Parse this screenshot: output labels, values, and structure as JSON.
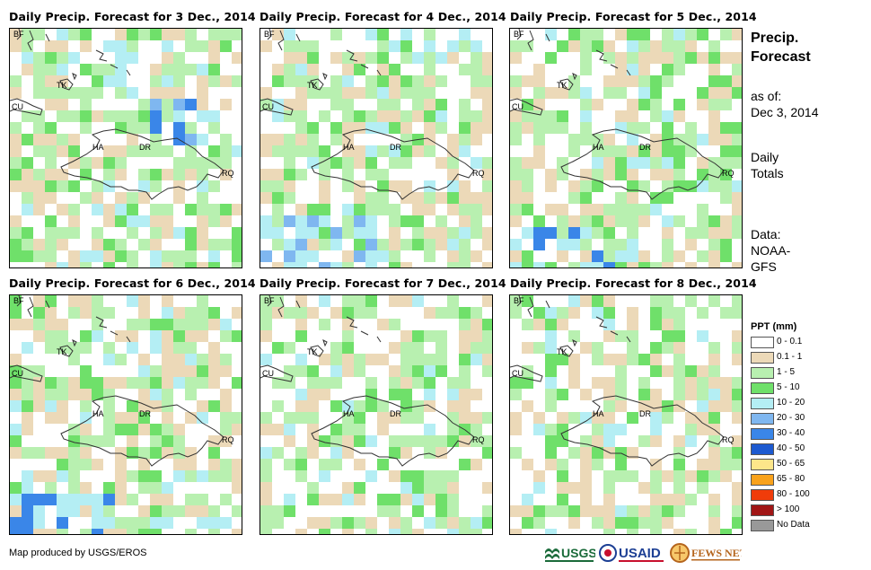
{
  "panels": [
    {
      "title": "Daily Precip. Forecast for 3 Dec., 2014",
      "seed": 3,
      "bias": "north-blue"
    },
    {
      "title": "Daily Precip. Forecast for 4 Dec., 2014",
      "seed": 4,
      "bias": "south-blue"
    },
    {
      "title": "Daily Precip. Forecast for 5 Dec., 2014",
      "seed": 5,
      "bias": "southwest-blue"
    },
    {
      "title": "Daily Precip. Forecast for 6 Dec., 2014",
      "seed": 6,
      "bias": "southwest-blue"
    },
    {
      "title": "Daily Precip. Forecast for 7 Dec., 2014",
      "seed": 7,
      "bias": "light"
    },
    {
      "title": "Daily Precip. Forecast for 8 Dec., 2014",
      "seed": 8,
      "bias": "light"
    }
  ],
  "map_labels": {
    "bf": "BF",
    "tk": "TK",
    "cu": "CU",
    "ha": "HA",
    "dr": "DR",
    "rq": "RQ"
  },
  "side": {
    "title_line1": "Precip.",
    "title_line2": "Forecast",
    "asof_line1": "as of:",
    "asof_line2": "Dec 3, 2014",
    "totals_line1": "Daily",
    "totals_line2": "Totals",
    "data_line1": "Data:",
    "data_line2": "NOAA-",
    "data_line3": "GFS"
  },
  "legend": {
    "title": "PPT (mm)",
    "items": [
      {
        "label": "0 - 0.1",
        "color": "#ffffff"
      },
      {
        "label": "0.1 - 1",
        "color": "#ecd9b8"
      },
      {
        "label": "1 - 5",
        "color": "#b8f0b0"
      },
      {
        "label": "5 - 10",
        "color": "#6fe06a"
      },
      {
        "label": "10 - 20",
        "color": "#b4eef4"
      },
      {
        "label": "20 - 30",
        "color": "#7fb7f0"
      },
      {
        "label": "30 - 40",
        "color": "#3a86e8"
      },
      {
        "label": "40 - 50",
        "color": "#1d5ad0"
      },
      {
        "label": "50 - 65",
        "color": "#fde68a"
      },
      {
        "label": "65 - 80",
        "color": "#f9a21b"
      },
      {
        "label": "80 - 100",
        "color": "#f03c0a"
      },
      {
        "label": "> 100",
        "color": "#a11616"
      },
      {
        "label": "No Data",
        "color": "#999999"
      }
    ]
  },
  "credit": "Map produced by USGS/EROS",
  "logos": {
    "usgs": "USGS",
    "usaid": "USAID",
    "fewsnet": "FEWS NET"
  }
}
